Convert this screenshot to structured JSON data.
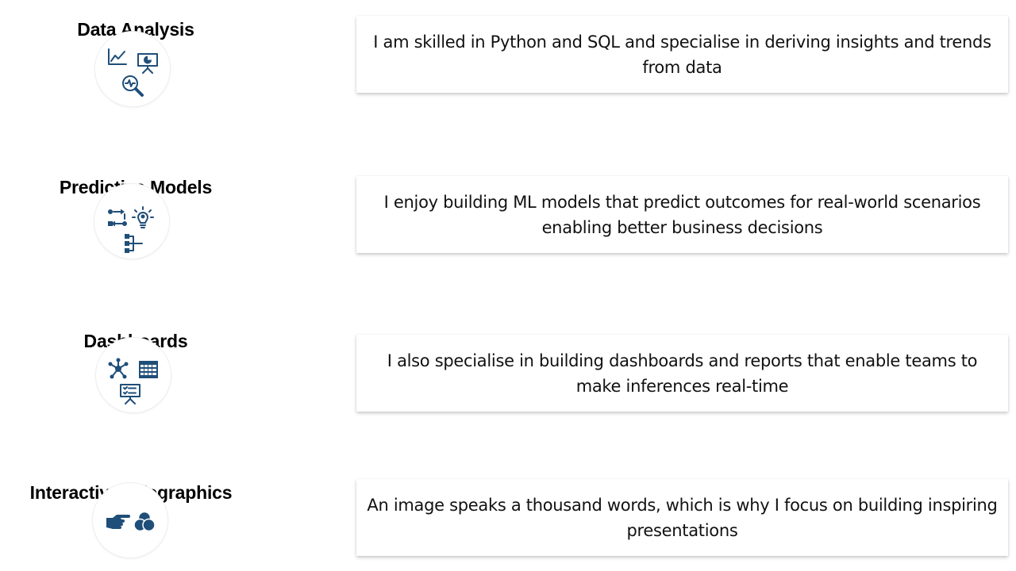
{
  "skills": [
    {
      "title": "Data Analysis",
      "description": "I am skilled in Python and SQL and specialise in deriving insights and trends from data",
      "icons": [
        "line-chart-icon",
        "presentation-pie-icon",
        "magnifier-pulse-icon"
      ]
    },
    {
      "title": "Predictive Models",
      "description": "I enjoy building ML models that predict outcomes for real-world scenarios enabling better business decisions",
      "icons": [
        "flow-nodes-icon",
        "lightbulb-gear-icon",
        "hierarchy-icon"
      ]
    },
    {
      "title": "Dashboards",
      "description": "I also specialise in building dashboards and reports that enable teams to make inferences real-time",
      "icons": [
        "network-hub-icon",
        "calendar-grid-icon",
        "presentation-checklist-icon"
      ]
    },
    {
      "title": "Interactive Infographics",
      "description": "An image speaks a thousand words, which is why I focus on building inspiring presentations",
      "icons": [
        "pointing-hand-icon",
        "venn-circles-icon"
      ]
    }
  ],
  "colors": {
    "icon": "#1f4e79",
    "text": "#111111",
    "card_bg": "#ffffff"
  }
}
